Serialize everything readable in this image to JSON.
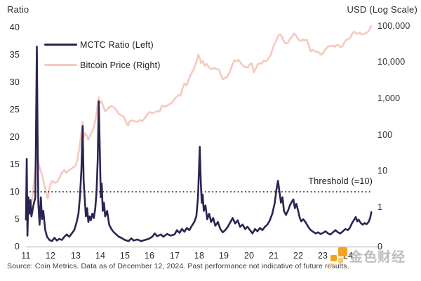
{
  "source": "Source: Coin Metrics. Data as of December 12, 2024. Past performance not indicative of future results.",
  "watermark": {
    "text": "金色财经",
    "icon_color": "#f5a31d",
    "icon_color_light": "#f9c968"
  },
  "chart_data": {
    "type": "line",
    "title": "",
    "grid": false,
    "legend_position": "top-left",
    "left_axis": {
      "title": "Ratio",
      "range": [
        0,
        40
      ],
      "ticks": [
        40,
        35,
        30,
        25,
        20,
        15,
        10,
        5,
        0
      ]
    },
    "right_axis": {
      "title": "USD (Log Scale)",
      "scale": "log",
      "tick_labels": [
        "100,000",
        "10,000",
        "1,000",
        "100",
        "10",
        "1",
        "0"
      ],
      "tick_values": [
        100000,
        10000,
        1000,
        100,
        10,
        1,
        null
      ]
    },
    "x_axis": {
      "range": [
        2011,
        2025
      ],
      "tick_labels": [
        "11",
        "12",
        "13",
        "14",
        "15",
        "16",
        "17",
        "18",
        "19",
        "20",
        "21",
        "22",
        "23",
        "24"
      ],
      "tick_values": [
        2011,
        2012,
        2013,
        2014,
        2015,
        2016,
        2017,
        2018,
        2019,
        2020,
        2021,
        2022,
        2023,
        2024
      ]
    },
    "threshold": {
      "value": 10,
      "label": "Threshold (=10)",
      "color": "#161616"
    },
    "axis_line_color": "#bdbdbd",
    "series": [
      {
        "name": "Bitcoin Price (Right)",
        "axis": "right",
        "color": "#f6c9bd",
        "width": 2.6,
        "x": [
          2011.0,
          2011.05,
          2011.1,
          2011.15,
          2011.2,
          2011.28,
          2011.35,
          2011.42,
          2011.46,
          2011.52,
          2011.58,
          2011.65,
          2011.72,
          2011.8,
          2011.88,
          2011.95,
          2012.05,
          2012.15,
          2012.25,
          2012.35,
          2012.45,
          2012.55,
          2012.62,
          2012.72,
          2012.82,
          2012.92,
          2013.0,
          2013.08,
          2013.16,
          2013.24,
          2013.29,
          2013.34,
          2013.4,
          2013.46,
          2013.52,
          2013.6,
          2013.68,
          2013.76,
          2013.84,
          2013.9,
          2013.94,
          2013.99,
          2014.05,
          2014.12,
          2014.2,
          2014.28,
          2014.36,
          2014.45,
          2014.55,
          2014.65,
          2014.75,
          2014.85,
          2014.95,
          2015.05,
          2015.12,
          2015.2,
          2015.3,
          2015.4,
          2015.5,
          2015.6,
          2015.7,
          2015.8,
          2015.9,
          2016.0,
          2016.1,
          2016.2,
          2016.3,
          2016.4,
          2016.5,
          2016.6,
          2016.7,
          2016.8,
          2016.9,
          2017.0,
          2017.08,
          2017.16,
          2017.24,
          2017.32,
          2017.4,
          2017.48,
          2017.56,
          2017.64,
          2017.72,
          2017.8,
          2017.88,
          2017.96,
          2018.02,
          2018.08,
          2018.14,
          2018.22,
          2018.3,
          2018.4,
          2018.5,
          2018.6,
          2018.7,
          2018.8,
          2018.88,
          2018.96,
          2019.04,
          2019.12,
          2019.22,
          2019.32,
          2019.42,
          2019.5,
          2019.58,
          2019.66,
          2019.76,
          2019.86,
          2019.96,
          2020.04,
          2020.12,
          2020.2,
          2020.28,
          2020.36,
          2020.44,
          2020.52,
          2020.6,
          2020.7,
          2020.8,
          2020.88,
          2020.96,
          2021.04,
          2021.1,
          2021.16,
          2021.22,
          2021.28,
          2021.34,
          2021.42,
          2021.5,
          2021.58,
          2021.66,
          2021.74,
          2021.82,
          2021.88,
          2021.94,
          2022.02,
          2022.1,
          2022.18,
          2022.26,
          2022.34,
          2022.42,
          2022.5,
          2022.58,
          2022.66,
          2022.74,
          2022.82,
          2022.9,
          2022.98,
          2023.06,
          2023.14,
          2023.22,
          2023.3,
          2023.38,
          2023.46,
          2023.54,
          2023.62,
          2023.7,
          2023.78,
          2023.86,
          2023.94,
          2024.02,
          2024.1,
          2024.18,
          2024.24,
          2024.32,
          2024.4,
          2024.48,
          2024.56,
          2024.64,
          2024.72,
          2024.8,
          2024.86,
          2024.92,
          2024.95
        ],
        "values": [
          0.45,
          0.8,
          1.0,
          1.5,
          1.1,
          2.5,
          8,
          25,
          30,
          15,
          11,
          8,
          5,
          2.8,
          1.8,
          3.5,
          5.5,
          4.8,
          5.0,
          6.5,
          9,
          11,
          9,
          10.5,
          11.5,
          13,
          14,
          22,
          45,
          120,
          230,
          90,
          110,
          95,
          75,
          100,
          125,
          180,
          350,
          750,
          1100,
          750,
          850,
          620,
          450,
          500,
          580,
          620,
          580,
          480,
          380,
          350,
          320,
          220,
          180,
          240,
          250,
          235,
          230,
          260,
          240,
          290,
          360,
          430,
          390,
          420,
          450,
          440,
          650,
          600,
          640,
          700,
          780,
          980,
          1100,
          1250,
          1200,
          1900,
          2600,
          2300,
          3200,
          4300,
          5500,
          7000,
          10000,
          16000,
          13000,
          9500,
          11000,
          8000,
          9000,
          7200,
          6500,
          7000,
          6500,
          6300,
          4200,
          3400,
          3700,
          3900,
          5200,
          8000,
          11500,
          10500,
          11800,
          9800,
          8200,
          7300,
          7200,
          8800,
          9500,
          5300,
          6800,
          8800,
          9300,
          9200,
          11000,
          10600,
          13000,
          15500,
          23000,
          33000,
          38000,
          48000,
          57000,
          58000,
          50000,
          37000,
          33000,
          34000,
          44000,
          48000,
          62000,
          57000,
          50000,
          42000,
          38000,
          43000,
          40000,
          42000,
          30000,
          20000,
          22000,
          20000,
          19500,
          19000,
          16500,
          16800,
          21000,
          24500,
          28000,
          27500,
          29000,
          26500,
          30000,
          29500,
          26000,
          28000,
          35000,
          42000,
          43000,
          48000,
          62000,
          70000,
          64000,
          61000,
          66000,
          58000,
          60000,
          63000,
          68000,
          76000,
          96000,
          100000
        ]
      },
      {
        "name": "MCTC Ratio (Left)",
        "axis": "left",
        "color": "#2b2452",
        "width": 2.6,
        "x": [
          2011.0,
          2011.03,
          2011.06,
          2011.1,
          2011.14,
          2011.18,
          2011.22,
          2011.3,
          2011.38,
          2011.44,
          2011.47,
          2011.5,
          2011.55,
          2011.6,
          2011.65,
          2011.7,
          2011.78,
          2011.85,
          2011.95,
          2012.05,
          2012.15,
          2012.25,
          2012.35,
          2012.45,
          2012.55,
          2012.65,
          2012.75,
          2012.85,
          2012.95,
          2013.05,
          2013.12,
          2013.18,
          2013.24,
          2013.29,
          2013.33,
          2013.37,
          2013.42,
          2013.47,
          2013.52,
          2013.57,
          2013.62,
          2013.68,
          2013.74,
          2013.8,
          2013.85,
          2013.9,
          2013.94,
          2013.98,
          2014.02,
          2014.06,
          2014.1,
          2014.15,
          2014.2,
          2014.28,
          2014.36,
          2014.45,
          2014.55,
          2014.65,
          2014.75,
          2014.85,
          2015.0,
          2015.15,
          2015.25,
          2015.35,
          2015.5,
          2015.65,
          2015.8,
          2015.95,
          2016.1,
          2016.2,
          2016.3,
          2016.45,
          2016.55,
          2016.7,
          2016.85,
          2017.0,
          2017.1,
          2017.2,
          2017.3,
          2017.4,
          2017.5,
          2017.6,
          2017.7,
          2017.8,
          2017.88,
          2017.95,
          2018.02,
          2018.06,
          2018.1,
          2018.14,
          2018.18,
          2018.25,
          2018.32,
          2018.4,
          2018.48,
          2018.56,
          2018.65,
          2018.75,
          2018.85,
          2018.95,
          2019.05,
          2019.15,
          2019.25,
          2019.35,
          2019.45,
          2019.55,
          2019.65,
          2019.75,
          2019.85,
          2019.95,
          2020.05,
          2020.15,
          2020.25,
          2020.35,
          2020.45,
          2020.55,
          2020.65,
          2020.75,
          2020.85,
          2020.95,
          2021.05,
          2021.12,
          2021.18,
          2021.24,
          2021.3,
          2021.36,
          2021.42,
          2021.5,
          2021.58,
          2021.66,
          2021.74,
          2021.8,
          2021.86,
          2021.92,
          2021.98,
          2022.06,
          2022.12,
          2022.2,
          2022.3,
          2022.4,
          2022.5,
          2022.6,
          2022.7,
          2022.8,
          2022.9,
          2023.0,
          2023.1,
          2023.2,
          2023.3,
          2023.4,
          2023.5,
          2023.6,
          2023.7,
          2023.8,
          2023.9,
          2024.0,
          2024.08,
          2024.16,
          2024.24,
          2024.32,
          2024.38,
          2024.44,
          2024.52,
          2024.6,
          2024.68,
          2024.76,
          2024.84,
          2024.9,
          2024.95
        ],
        "values": [
          5,
          16,
          2,
          9,
          6,
          8.5,
          5.5,
          7.5,
          9,
          36.5,
          20,
          8,
          4,
          9,
          5,
          6.5,
          3,
          1.8,
          1.2,
          1.0,
          1.6,
          1.1,
          1.4,
          1.2,
          1.8,
          2.2,
          1.8,
          2.4,
          3.0,
          4.5,
          6,
          9,
          14,
          22,
          12,
          9,
          5.5,
          7,
          4.5,
          5.5,
          4.8,
          6,
          5.2,
          7,
          10,
          16,
          26.5,
          18,
          9,
          11.5,
          6.5,
          8,
          5.5,
          6.5,
          4,
          3.2,
          2.6,
          2.2,
          1.8,
          1.6,
          1.2,
          1.0,
          1.5,
          1.1,
          1.3,
          1.0,
          1.2,
          1.4,
          1.8,
          2.4,
          1.9,
          2.2,
          1.8,
          2.3,
          2.0,
          2.2,
          3.0,
          2.5,
          3.2,
          2.7,
          3.4,
          3.0,
          3.8,
          4.5,
          5.5,
          9.0,
          18.2,
          12,
          8,
          9.5,
          6.5,
          7.5,
          5,
          6,
          4.5,
          5.2,
          3.8,
          4.5,
          3.2,
          2.6,
          3.0,
          3.6,
          4.4,
          5.2,
          4.2,
          4.8,
          3.6,
          4.0,
          3.2,
          3.6,
          3.0,
          2.4,
          3.2,
          2.8,
          3.4,
          3.0,
          3.6,
          4.0,
          4.8,
          6.0,
          8.0,
          10.5,
          12.0,
          10.0,
          8.0,
          9.0,
          6.5,
          5.8,
          6.5,
          7.5,
          8.2,
          8.6,
          7.0,
          7.8,
          6.8,
          5.2,
          4.6,
          5.0,
          4.4,
          3.6,
          3.0,
          2.7,
          2.4,
          2.6,
          2.3,
          2.5,
          2.8,
          2.4,
          2.2,
          2.6,
          3.0,
          2.6,
          2.4,
          2.8,
          3.2,
          3.0,
          3.4,
          4.2,
          4.8,
          5.4,
          4.6,
          4.9,
          4.3,
          4.0,
          4.3,
          4.1,
          4.5,
          5.2,
          6.3
        ]
      }
    ]
  }
}
